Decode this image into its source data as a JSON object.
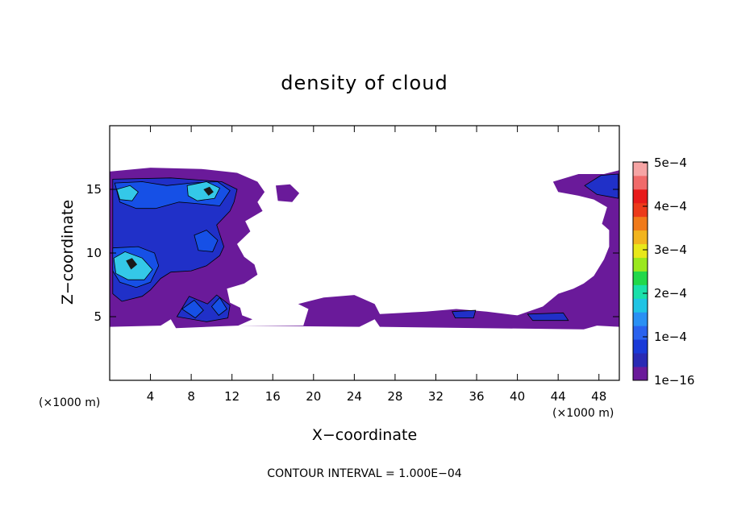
{
  "chart_data": {
    "type": "heatmap",
    "title": "density of cloud",
    "xlabel": "X−coordinate",
    "ylabel": "Z−coordinate",
    "x_unit": "(×1000 m)",
    "y_unit": "(×1000 m)",
    "xlim": [
      0,
      50
    ],
    "ylim": [
      0,
      20
    ],
    "x_ticks": [
      4,
      8,
      12,
      16,
      20,
      24,
      28,
      32,
      36,
      40,
      44,
      48
    ],
    "y_ticks": [
      5,
      10,
      15
    ],
    "colorbar": {
      "range": [
        1e-16,
        0.0005
      ],
      "tick_labels": [
        "1e−16",
        "1e−4",
        "2e−4",
        "3e−4",
        "4e−4",
        "5e−4"
      ],
      "colors": [
        "#6a1a9a",
        "#2a2ab4",
        "#1a3ad8",
        "#2a62ee",
        "#2a90f4",
        "#20c4e4",
        "#1ae0aa",
        "#22d84a",
        "#9ae81e",
        "#e8e81a",
        "#f2b41e",
        "#f07a1a",
        "#ec3a1a",
        "#e81a1a",
        "#f06a6a",
        "#f6a4a4"
      ]
    },
    "contour_interval_text": "CONTOUR INTERVAL = 1.000E−04",
    "regions": [
      {
        "level": 0,
        "polygon": [
          [
            0,
            16.4
          ],
          [
            4,
            16.7
          ],
          [
            9,
            16.6
          ],
          [
            12.5,
            16.3
          ],
          [
            14.5,
            15.6
          ],
          [
            15.2,
            14.8
          ],
          [
            14.5,
            14.0
          ],
          [
            15.0,
            13.3
          ],
          [
            13.3,
            12.5
          ],
          [
            13.8,
            11.7
          ],
          [
            12.5,
            10.7
          ],
          [
            13.2,
            9.7
          ],
          [
            14.2,
            9.1
          ],
          [
            14.5,
            8.3
          ],
          [
            13.2,
            7.6
          ],
          [
            11.5,
            7.2
          ],
          [
            11.8,
            6.1
          ],
          [
            12.8,
            5.7
          ],
          [
            13,
            5.1
          ],
          [
            14,
            4.8
          ],
          [
            12.6,
            4.3
          ],
          [
            6.5,
            4.1
          ],
          [
            6.0,
            4.8
          ],
          [
            5.0,
            4.3
          ],
          [
            0,
            4.2
          ]
        ]
      },
      {
        "level": 0,
        "polygon": [
          [
            12.5,
            4.3
          ],
          [
            19,
            4.3
          ],
          [
            19.5,
            5.6
          ],
          [
            18.5,
            6.0
          ],
          [
            21,
            6.5
          ],
          [
            24,
            6.7
          ],
          [
            26,
            6.0
          ],
          [
            26.5,
            5.2
          ],
          [
            31,
            5.4
          ],
          [
            34,
            5.6
          ],
          [
            37,
            5.4
          ],
          [
            40,
            5.1
          ],
          [
            42.5,
            5.8
          ],
          [
            44,
            6.8
          ],
          [
            45.5,
            7.2
          ],
          [
            46.5,
            7.6
          ],
          [
            47.5,
            8.2
          ],
          [
            48.5,
            9.5
          ],
          [
            49,
            10.5
          ],
          [
            49,
            11.8
          ],
          [
            48.3,
            12.3
          ],
          [
            48.8,
            13.6
          ],
          [
            47.5,
            14.2
          ],
          [
            46,
            14.5
          ],
          [
            44,
            14.8
          ],
          [
            43.5,
            15.6
          ],
          [
            46,
            16.2
          ],
          [
            48.5,
            16.2
          ],
          [
            50,
            16.5
          ],
          [
            50,
            4.2
          ],
          [
            47.8,
            4.3
          ],
          [
            46.5,
            4.0
          ],
          [
            26.5,
            4.2
          ],
          [
            26.0,
            4.8
          ],
          [
            24.5,
            4.2
          ]
        ]
      },
      {
        "level": 0,
        "polygon": [
          [
            16.3,
            15.3
          ],
          [
            17.7,
            15.4
          ],
          [
            18.6,
            14.7
          ],
          [
            17.9,
            14.0
          ],
          [
            16.5,
            14.1
          ]
        ]
      },
      {
        "level": 1,
        "polygon": [
          [
            0.3,
            15.8
          ],
          [
            6,
            15.9
          ],
          [
            11,
            15.6
          ],
          [
            12.5,
            15.0
          ],
          [
            12.2,
            14.0
          ],
          [
            11.8,
            13.3
          ],
          [
            10.5,
            12.2
          ],
          [
            11.2,
            10.5
          ],
          [
            10.8,
            9.8
          ],
          [
            9.5,
            9.0
          ],
          [
            8,
            8.6
          ],
          [
            6,
            8.5
          ],
          [
            5,
            8.0
          ],
          [
            4,
            7.1
          ],
          [
            3.2,
            6.6
          ],
          [
            1.2,
            6.2
          ],
          [
            0.3,
            6.8
          ]
        ]
      },
      {
        "level": 1,
        "polygon": [
          [
            6.6,
            5.0
          ],
          [
            7.8,
            6.6
          ],
          [
            9.6,
            6.0
          ],
          [
            10.5,
            6.7
          ],
          [
            11.8,
            5.9
          ],
          [
            11.6,
            4.9
          ],
          [
            9.5,
            4.6
          ]
        ]
      },
      {
        "level": 1,
        "polygon": [
          [
            46.6,
            15.3
          ],
          [
            48.2,
            16.1
          ],
          [
            49.9,
            16.2
          ],
          [
            49.9,
            14.3
          ],
          [
            47.8,
            14.6
          ]
        ]
      },
      {
        "level": 1,
        "polygon": [
          [
            33.6,
            5.4
          ],
          [
            35.9,
            5.5
          ],
          [
            35.7,
            4.9
          ],
          [
            33.9,
            4.9
          ]
        ]
      },
      {
        "level": 1,
        "polygon": [
          [
            41.0,
            5.2
          ],
          [
            44.5,
            5.3
          ],
          [
            45.0,
            4.7
          ],
          [
            41.5,
            4.7
          ]
        ]
      },
      {
        "level": 2,
        "polygon": [
          [
            0.5,
            15.5
          ],
          [
            3.2,
            15.6
          ],
          [
            5.6,
            15.3
          ],
          [
            8,
            15.5
          ],
          [
            10.6,
            15.6
          ],
          [
            11.8,
            14.9
          ],
          [
            10.8,
            13.7
          ],
          [
            8.3,
            13.9
          ],
          [
            6.8,
            14.0
          ],
          [
            4.5,
            13.5
          ],
          [
            2.6,
            13.5
          ],
          [
            1.0,
            14.0
          ]
        ]
      },
      {
        "level": 2,
        "polygon": [
          [
            0.3,
            10.4
          ],
          [
            2.8,
            10.5
          ],
          [
            4.4,
            10.0
          ],
          [
            4.8,
            9.0
          ],
          [
            4.0,
            7.7
          ],
          [
            2.6,
            7.3
          ],
          [
            1.0,
            7.7
          ],
          [
            0.3,
            8.6
          ]
        ]
      },
      {
        "level": 2,
        "polygon": [
          [
            8.3,
            11.4
          ],
          [
            9.5,
            11.8
          ],
          [
            10.6,
            11.0
          ],
          [
            10.1,
            10.1
          ],
          [
            8.7,
            10.2
          ]
        ]
      },
      {
        "level": 2,
        "polygon": [
          [
            7.1,
            5.6
          ],
          [
            8.3,
            6.3
          ],
          [
            9.2,
            5.5
          ],
          [
            8.4,
            4.9
          ]
        ]
      },
      {
        "level": 2,
        "polygon": [
          [
            10.0,
            5.8
          ],
          [
            10.8,
            6.5
          ],
          [
            11.5,
            5.6
          ],
          [
            10.7,
            5.1
          ]
        ]
      },
      {
        "level": 3,
        "polygon": [
          [
            0.7,
            15.0
          ],
          [
            2.0,
            15.3
          ],
          [
            2.8,
            14.8
          ],
          [
            2.2,
            14.1
          ],
          [
            1.0,
            14.2
          ]
        ]
      },
      {
        "level": 3,
        "polygon": [
          [
            7.6,
            15.3
          ],
          [
            9.5,
            15.6
          ],
          [
            10.8,
            15.1
          ],
          [
            10.3,
            14.3
          ],
          [
            8.6,
            14.1
          ],
          [
            7.7,
            14.5
          ]
        ]
      },
      {
        "level": 3,
        "polygon": [
          [
            0.4,
            9.6
          ],
          [
            1.5,
            10.1
          ],
          [
            3.2,
            9.6
          ],
          [
            4.2,
            8.7
          ],
          [
            3.4,
            7.9
          ],
          [
            1.8,
            7.9
          ],
          [
            0.6,
            8.4
          ]
        ]
      },
      {
        "level": 4,
        "polygon": [
          [
            1.6,
            9.4
          ],
          [
            2.2,
            9.6
          ],
          [
            2.7,
            9.1
          ],
          [
            2.1,
            8.7
          ]
        ]
      },
      {
        "level": 4,
        "polygon": [
          [
            9.2,
            15.0
          ],
          [
            9.8,
            15.2
          ],
          [
            10.2,
            14.8
          ],
          [
            9.7,
            14.5
          ]
        ]
      }
    ]
  }
}
